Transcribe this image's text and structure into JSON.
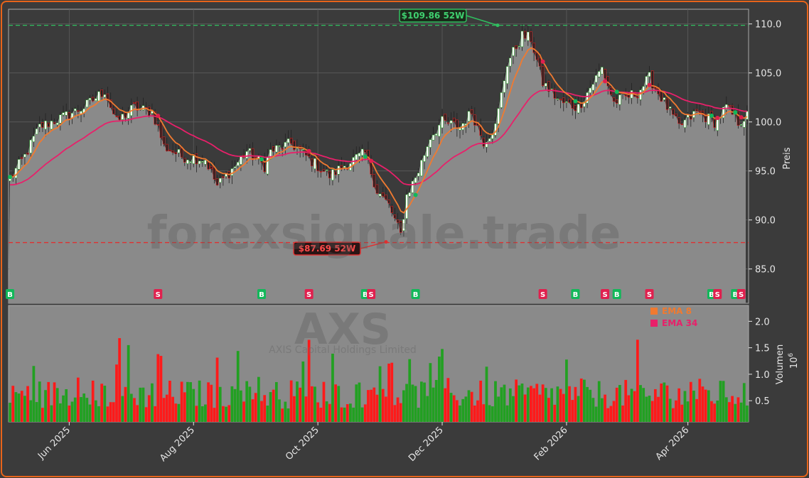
{
  "chart_data": {
    "type": "candlestick",
    "watermark_site": "forexsignale.trade",
    "watermark_ticker": "AXS",
    "watermark_company": "AXIS Capital Holdings Limited",
    "colors": {
      "background": "#3b3b3b",
      "plot_bg": "#8a8a8a",
      "up": "#22a022",
      "down": "#ff1a1a",
      "ema8": "#f07a30",
      "ema34": "#e8206a",
      "high_line": "#2fbf5f",
      "low_line": "#e03030",
      "frame": "#e8641a"
    },
    "price_panel": {
      "ylabel": "Preis",
      "ylim": [
        81.5,
        111.5
      ],
      "yticks": [
        85.0,
        90.0,
        95.0,
        100.0,
        105.0,
        110.0
      ],
      "ytick_labels": [
        "85.0",
        "90.0",
        "95.0",
        "100.0",
        "105.0",
        "110.0"
      ],
      "high_52w": {
        "value": 109.86,
        "label": "$109.86 52W"
      },
      "low_52w": {
        "value": 87.69,
        "label": "$87.69 52W"
      },
      "last_close": 99.2
    },
    "volume_panel": {
      "ylabel": "Volumen",
      "ylabel_exp": "10",
      "ylabel_exp_power": "6",
      "ylim": [
        0.1,
        2.3
      ],
      "yticks": [
        0.5,
        1.0,
        1.5,
        2.0
      ],
      "ytick_labels": [
        "0.5",
        "1.0",
        "1.5",
        "2.0"
      ]
    },
    "legend": [
      {
        "name": "EMA 8",
        "color": "#f07a30"
      },
      {
        "name": "EMA 34",
        "color": "#e8206a"
      }
    ],
    "x_dates": [
      "Jun 2025",
      "Aug 2025",
      "Oct 2025",
      "Dec 2025",
      "Feb 2026",
      "Apr 2026"
    ],
    "x_date_index": [
      20,
      62,
      104,
      146,
      188,
      229
    ],
    "n_bars": 250,
    "close_anchors": [
      [
        0,
        94.2
      ],
      [
        5,
        96.5
      ],
      [
        10,
        99.5
      ],
      [
        18,
        100.5
      ],
      [
        25,
        101.5
      ],
      [
        32,
        103.2
      ],
      [
        36,
        100.0
      ],
      [
        42,
        101.5
      ],
      [
        48,
        101.0
      ],
      [
        50,
        99.5
      ],
      [
        52,
        97.5
      ],
      [
        58,
        96.5
      ],
      [
        66,
        96.2
      ],
      [
        70,
        93.5
      ],
      [
        76,
        95.5
      ],
      [
        80,
        97.0
      ],
      [
        86,
        95.5
      ],
      [
        88,
        97.0
      ],
      [
        95,
        97.8
      ],
      [
        102,
        96.0
      ],
      [
        108,
        94.5
      ],
      [
        114,
        95.8
      ],
      [
        120,
        96.8
      ],
      [
        124,
        93.0
      ],
      [
        128,
        91.5
      ],
      [
        132,
        88.5
      ],
      [
        134,
        92.5
      ],
      [
        138,
        95.0
      ],
      [
        142,
        98.5
      ],
      [
        146,
        100.0
      ],
      [
        152,
        99.5
      ],
      [
        156,
        101.0
      ],
      [
        160,
        98.0
      ],
      [
        164,
        99.5
      ],
      [
        168,
        106.0
      ],
      [
        173,
        108.8
      ],
      [
        176,
        108.5
      ],
      [
        180,
        104.0
      ],
      [
        186,
        102.0
      ],
      [
        192,
        101.5
      ],
      [
        196,
        103.5
      ],
      [
        200,
        105.5
      ],
      [
        204,
        102.0
      ],
      [
        208,
        102.5
      ],
      [
        212,
        103.0
      ],
      [
        216,
        104.5
      ],
      [
        222,
        101.5
      ],
      [
        226,
        99.5
      ],
      [
        232,
        101.0
      ],
      [
        238,
        100.0
      ],
      [
        242,
        101.5
      ],
      [
        246,
        100.0
      ],
      [
        250,
        100.8
      ]
    ],
    "signals": [
      {
        "i": 0,
        "t": "B"
      },
      {
        "i": 50,
        "t": "S"
      },
      {
        "i": 85,
        "t": "B"
      },
      {
        "i": 101,
        "t": "S"
      },
      {
        "i": 120,
        "t": "B"
      },
      {
        "i": 122,
        "t": "S"
      },
      {
        "i": 137,
        "t": "B"
      },
      {
        "i": 180,
        "t": "S"
      },
      {
        "i": 191,
        "t": "B"
      },
      {
        "i": 201,
        "t": "S"
      },
      {
        "i": 205,
        "t": "B"
      },
      {
        "i": 216,
        "t": "S"
      },
      {
        "i": 237,
        "t": "B"
      },
      {
        "i": 239,
        "t": "S"
      },
      {
        "i": 245,
        "t": "B"
      },
      {
        "i": 247,
        "t": "S"
      }
    ]
  }
}
